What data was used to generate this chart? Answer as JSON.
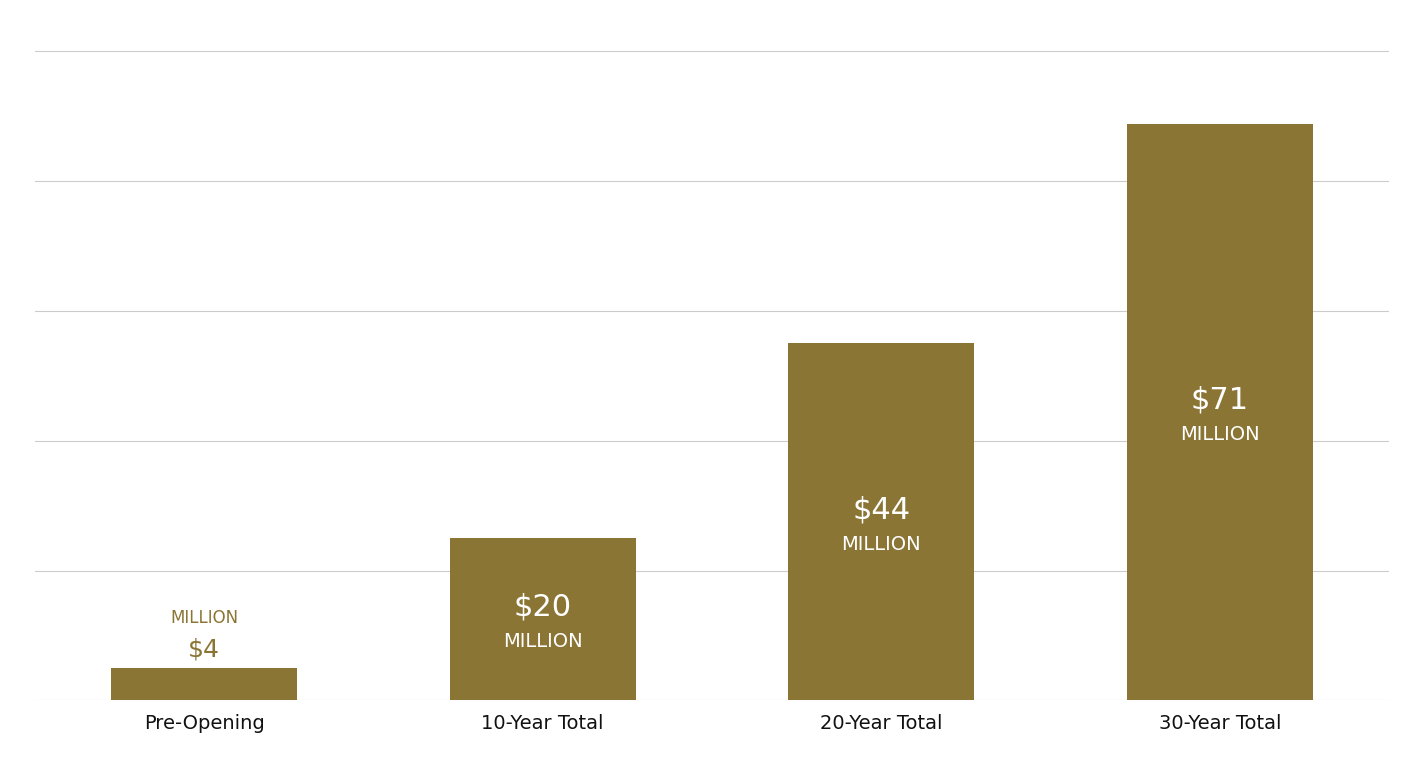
{
  "categories": [
    "Pre-Opening",
    "10-Year Total",
    "20-Year Total",
    "30-Year Total"
  ],
  "values": [
    4,
    20,
    44,
    71
  ],
  "bar_color": "#8B7535",
  "background_color": "#FFFFFF",
  "label_dollar": [
    "$4",
    "$20",
    "$44",
    "$71"
  ],
  "label_million": [
    "MILLION",
    "MILLION",
    "MILLION",
    "MILLION"
  ],
  "text_color_outside": "#8B7535",
  "text_color_inside": "#FFFFFF",
  "ylim": [
    0,
    82
  ],
  "grid_color": "#CCCCCC",
  "tick_label_color": "#111111",
  "tick_label_fontsize": 14,
  "label_dollar_fontsize_large": 22,
  "label_million_fontsize_large": 14,
  "label_dollar_fontsize_small": 18,
  "label_million_fontsize_small": 12,
  "bar_width": 0.55
}
